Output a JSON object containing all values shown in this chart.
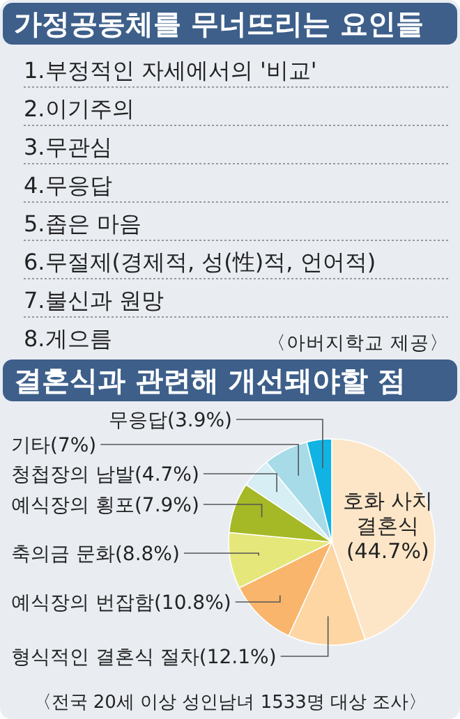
{
  "chart_data": [
    {
      "type": "other",
      "title": "가정공동체를 무너뜨리는 요인들",
      "annotations": [
        "1.부정적인 자세에서의 '비교'",
        "2.이기주의",
        "3.무관심",
        "4.무응답",
        "5.좁은 마음",
        "6.무절제(경제적, 성(性)적, 언어적)",
        "7.불신과 원망",
        "8.게으름",
        "〈아버지학교 제공〉"
      ]
    },
    {
      "type": "pie",
      "title": "결혼식과 관련해 개선돼야할 점",
      "categories": [
        "호화 사치 결혼식",
        "형식적인 결혼식 절차",
        "예식장의 번잡함",
        "축의금 문화",
        "예식장의 횡포",
        "청첩장의 남발",
        "기타",
        "무응답"
      ],
      "values": [
        44.7,
        12.1,
        10.8,
        8.8,
        7.9,
        4.7,
        7,
        3.9
      ],
      "value_labels": [
        "(44.7%)",
        "(12.1%)",
        "(10.8%)",
        "(8.8%)",
        "(7.9%)",
        "(4.7%)",
        "(7%)",
        "(3.9%)"
      ],
      "colors": [
        "#fde6c8",
        "#fdd6a4",
        "#f9b56c",
        "#e6e77a",
        "#a5b825",
        "#d6eef4",
        "#a7dbe8",
        "#10b3e3"
      ],
      "annotations": [
        "〈전국 20세 이상 성인남녀 1533명 대상 조사〉"
      ]
    }
  ]
}
